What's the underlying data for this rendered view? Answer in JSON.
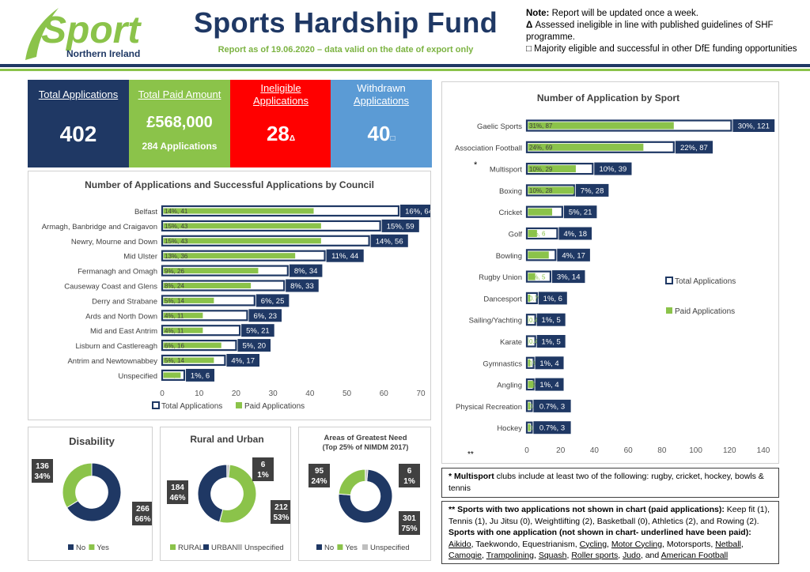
{
  "header": {
    "logo_text": "Sport",
    "logo_sub": "Northern Ireland",
    "title": "Sports Hardship Fund",
    "subtitle": "Report as of 19.06.2020 – data valid on the date of export only",
    "note_label": "Note:",
    "note_text": " Report will be updated once a week.",
    "ineligible_symbol": "Δ",
    "ineligible_note": " Assessed ineligible in line with published guidelines of SHF programme.",
    "withdrawn_symbol": "□",
    "withdrawn_note": " Majority eligible and successful in other DfE funding opportunities"
  },
  "tiles": {
    "total_label": "Total Applications",
    "total_value": "402",
    "paid_label": "Total Paid Amount",
    "paid_value": "£568,000",
    "paid_sub": "284 Applications",
    "ineligible_label_1": "Ineligible",
    "ineligible_label_2": "Applications",
    "ineligible_value": "28",
    "ineligible_mark": "Δ",
    "withdrawn_label_1": "Withdrawn",
    "withdrawn_label_2": "Applications",
    "withdrawn_value": "40",
    "withdrawn_mark": "□"
  },
  "colors": {
    "navy": "#1f3864",
    "green": "#8bc34a",
    "red": "#ff0000",
    "blue": "#5b9bd5",
    "grey": "#bfbfbf"
  },
  "chart_data": [
    {
      "type": "bar",
      "title": "Number of Applications and Successful Applications by Council",
      "categories": [
        "Belfast",
        "Armagh, Banbridge and Craigavon",
        "Newry, Mourne and Down",
        "Mid Ulster",
        "Fermanagh and Omagh",
        "Causeway Coast and Glens",
        "Derry and Strabane",
        "Ards and North Down",
        "Mid and East Antrim",
        "Lisburn and Castlereagh",
        "Antrim and Newtownabbey",
        "Unspecified"
      ],
      "series": [
        {
          "name": "Total Applications",
          "values": [
            64,
            59,
            56,
            44,
            34,
            33,
            25,
            23,
            21,
            20,
            17,
            6
          ],
          "labels": [
            "16%, 64",
            "15%, 59",
            "14%, 56",
            "11%, 44",
            "8%, 34",
            "8%, 33",
            "6%, 25",
            "6%, 23",
            "5%, 21",
            "5%, 20",
            "4%, 17",
            "1%, 6"
          ]
        },
        {
          "name": "Paid Applications",
          "values": [
            41,
            43,
            43,
            36,
            26,
            24,
            14,
            11,
            11,
            16,
            14,
            5
          ],
          "labels": [
            "14%, 41",
            "15%, 43",
            "15%, 43",
            "13%, 36",
            "9%, 26",
            "8%, 24",
            "5%, 14",
            "4%, 11",
            "4%, 11",
            "6%, 16",
            "5%, 14",
            "2%, 5"
          ]
        }
      ],
      "xlim": [
        0,
        70
      ],
      "ticks": [
        "0",
        "10",
        "20",
        "30",
        "40",
        "50",
        "60",
        "70"
      ],
      "legend": "bottom"
    },
    {
      "type": "bar",
      "title": "Number of Application by Sport",
      "categories": [
        "Gaelic Sports",
        "Association Football",
        "Multisport",
        "Boxing",
        "Cricket",
        "Golf",
        "Bowling",
        "Rugby Union",
        "Dancesport",
        "Sailing/Yachting",
        "Karate",
        "Gymnastics",
        "Angling",
        "Physical Recreation",
        "Hockey"
      ],
      "series": [
        {
          "name": "Total Applications",
          "values": [
            121,
            87,
            39,
            28,
            21,
            18,
            17,
            14,
            6,
            5,
            5,
            4,
            4,
            3,
            3
          ],
          "labels": [
            "30%, 121",
            "22%, 87",
            "10%, 39",
            "7%, 28",
            "5%, 21",
            "4%, 18",
            "4%, 17",
            "3%, 14",
            "1%, 6",
            "1%, 5",
            "1%, 5",
            "1%, 4",
            "1%, 4",
            "0.7%, 3",
            "0.7%, 3"
          ]
        },
        {
          "name": "Paid Applications",
          "values": [
            87,
            69,
            29,
            28,
            15,
            6,
            13,
            5,
            2,
            1,
            1,
            2,
            4,
            2,
            2
          ],
          "labels": [
            "31%, 87",
            "24%, 69",
            "10%, 29",
            "10%, 28",
            "5%, 15",
            "2%, 6",
            "5%, 13",
            "2%, 5",
            "0.7%, 2",
            "0.4%, 1",
            "0.4%, 1",
            "1%, 2",
            "1%, 4",
            "0.7%, 2",
            "0.7%, 2"
          ]
        }
      ],
      "xlim": [
        0,
        140
      ],
      "ticks": [
        "0",
        "20",
        "40",
        "60",
        "80",
        "100",
        "120",
        "140"
      ],
      "multisport_mark": "*",
      "footnote_mark": "**",
      "legend": "right"
    },
    {
      "type": "pie",
      "title": "Disability",
      "slices": [
        {
          "name": "No",
          "value": 266,
          "label_1": "266",
          "label_2": "66%"
        },
        {
          "name": "Yes",
          "value": 136,
          "label_1": "136",
          "label_2": "34%"
        }
      ]
    },
    {
      "type": "pie",
      "title": "Rural and Urban",
      "slices": [
        {
          "name": "RURAL",
          "value": 212,
          "label_1": "212",
          "label_2": "53%"
        },
        {
          "name": "URBAN",
          "value": 184,
          "label_1": "184",
          "label_2": "46%"
        },
        {
          "name": "Unspecified",
          "value": 6,
          "label_1": "6",
          "label_2": "1%"
        }
      ]
    },
    {
      "type": "pie",
      "title": "Areas of Greatest Need",
      "subtitle": "(Top 25% of NIMDM 2017)",
      "slices": [
        {
          "name": "No",
          "value": 301,
          "label_1": "301",
          "label_2": "75%"
        },
        {
          "name": "Yes",
          "value": 95,
          "label_1": "95",
          "label_2": "24%"
        },
        {
          "name": "Unspecified",
          "value": 6,
          "label_1": "6",
          "label_2": "1%"
        }
      ]
    }
  ],
  "notes": {
    "multisport_star": "* Multisport",
    "multisport_text": " clubs include at least two of the following: rugby, cricket, hockey, bowls & tennis",
    "two_label": "** Sports with two applications not shown in chart (paid applications):",
    "two_text": " Keep fit (1), Tennis (1), Ju Jitsu (0), Weightlifting (2), Basketball (0), Athletics (2), and Rowing (2).",
    "one_label": "Sports with one application (not shown in chart- underlined have been paid):",
    "one_items": [
      {
        "name": "Aikido",
        "paid": true
      },
      {
        "name": "Taekwondo",
        "paid": false
      },
      {
        "name": "Equestrianism",
        "paid": false
      },
      {
        "name": "Cycling",
        "paid": true
      },
      {
        "name": "Motor Cycling",
        "paid": true
      },
      {
        "name": "Motorsports",
        "paid": false
      },
      {
        "name": "Netball",
        "paid": true
      },
      {
        "name": "Camogie",
        "paid": true
      },
      {
        "name": "Trampolining",
        "paid": true
      },
      {
        "name": "Squash",
        "paid": true
      },
      {
        "name": "Roller sports",
        "paid": true
      },
      {
        "name": "Judo",
        "paid": true
      },
      {
        "name": "American Football",
        "paid": true
      }
    ]
  }
}
